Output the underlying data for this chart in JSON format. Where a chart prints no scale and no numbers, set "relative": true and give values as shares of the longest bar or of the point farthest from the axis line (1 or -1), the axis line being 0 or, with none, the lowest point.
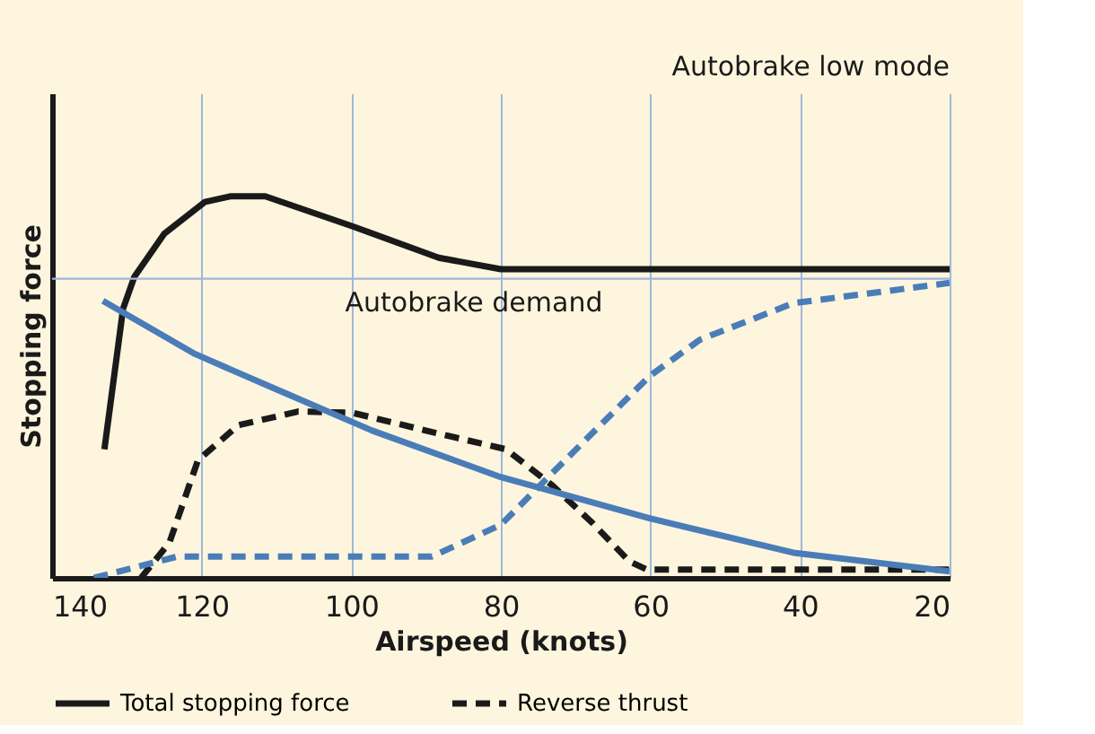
{
  "chart_data": {
    "type": "line",
    "relative": true,
    "xlabel": "Airspeed (knots)",
    "ylabel": "Stopping force",
    "xlim": [
      140,
      20
    ],
    "xticks": [
      140,
      120,
      100,
      80,
      60,
      40,
      20
    ],
    "grid": "x",
    "legend": "bottom",
    "marker": "none",
    "annotations": [
      "Autobrake low mode"
    ],
    "ref_lines": [
      {
        "axis": "y",
        "value": 0.784,
        "label": "Autobrake demand",
        "color": "#9fb7dc",
        "line_style": "solid"
      }
    ],
    "series": [
      {
        "name": "Total stopping force",
        "color": "#1a1a1a",
        "line_style": "solid",
        "x": [
          133.0,
          130.5,
          129.0,
          125.0,
          119.6,
          116.2,
          111.5,
          99.9,
          88.3,
          80.0,
          20
        ],
        "values": [
          0.337,
          0.706,
          0.789,
          0.902,
          0.985,
          1,
          1,
          0.922,
          0.839,
          0.809,
          0.809
        ]
      },
      {
        "name": "Reverse thrust",
        "color": "#1a1a1a",
        "line_style": "dashed",
        "x": [
          128.1,
          124.3,
          120.5,
          115.1,
          107.1,
          99.9,
          88.3,
          79.3,
          73.1,
          67.7,
          62.8,
          60.5,
          20
        ],
        "values": [
          0,
          0.093,
          0.308,
          0.4,
          0.436,
          0.433,
          0.378,
          0.337,
          0.242,
          0.143,
          0.043,
          0.022,
          0.022
        ]
      },
      {
        "color": "#4a7db8",
        "line_style": "solid",
        "x": [
          133.2,
          120.9,
          110.6,
          97.2,
          80,
          60.1,
          40.9,
          20
        ],
        "values": [
          0.726,
          0.587,
          0.499,
          0.386,
          0.264,
          0.156,
          0.066,
          0.017
        ]
      },
      {
        "color": "#4a7db8",
        "line_style": "dashed",
        "x": [
          134.4,
          123.2,
          89.2,
          80,
          73.1,
          60.1,
          53.4,
          40.9,
          20
        ],
        "values": [
          0,
          0.056,
          0.056,
          0.139,
          0.275,
          0.529,
          0.624,
          0.72,
          0.773
        ]
      }
    ]
  }
}
